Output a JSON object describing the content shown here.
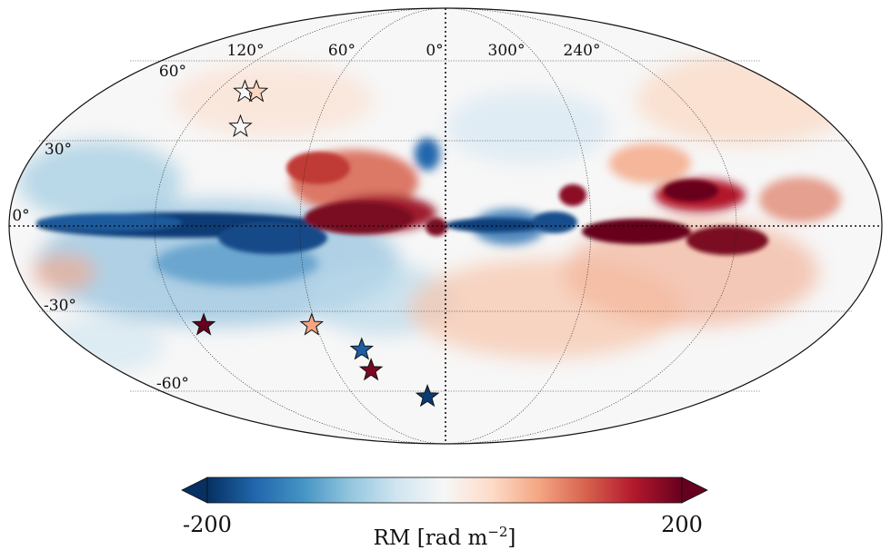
{
  "map": {
    "projection": "Mollweide",
    "longitude_labels": [
      "120°",
      "60°",
      "0°",
      "300°",
      "240°"
    ],
    "latitude_labels": [
      "60°",
      "30°",
      "0°",
      "-30°",
      "-60°"
    ]
  },
  "colorbar": {
    "min_label": "-200",
    "max_label": "200",
    "label": "RM [rad m",
    "label_exponent": "−2",
    "label_close": "]",
    "colormap": [
      "#053061",
      "#2166ac",
      "#4393c3",
      "#92c5de",
      "#d1e5f0",
      "#f7f7f7",
      "#fddbc7",
      "#f4a582",
      "#d6604d",
      "#b2182b",
      "#67001f"
    ]
  },
  "stars": [
    {
      "lon": 105,
      "lat": 47,
      "color": "#f7f7f7"
    },
    {
      "lon": 99,
      "lat": 47,
      "color": "#fbd7c2"
    },
    {
      "lon": 95,
      "lat": 34,
      "color": "#f7f7f7"
    },
    {
      "lon": 112,
      "lat": -34,
      "color": "#67001f"
    },
    {
      "lon": 62,
      "lat": -34,
      "color": "#f4a582"
    },
    {
      "lon": 42,
      "lat": -43,
      "color": "#1d5ea3"
    },
    {
      "lon": 41,
      "lat": -51,
      "color": "#7a0a23"
    },
    {
      "lon": 12,
      "lat": -62,
      "color": "#0b3a75"
    }
  ]
}
